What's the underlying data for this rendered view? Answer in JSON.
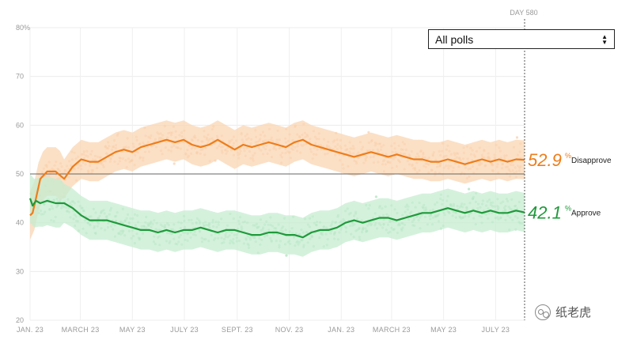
{
  "filter": {
    "selected": "All polls"
  },
  "watermark": {
    "text": "纸老虎"
  },
  "colors": {
    "disapprove": "#ef7d1a",
    "approve": "#1e9a3a",
    "disapprove_light": "#f9d5b3",
    "approve_light": "#c6ecd0"
  },
  "chart_data": {
    "type": "line",
    "title": "",
    "xlabel": "",
    "ylabel": "",
    "ylim": [
      20,
      80
    ],
    "yticks": [
      "80%",
      "70",
      "60",
      "50",
      "40",
      "30",
      "20"
    ],
    "xticks": [
      "JAN. 23",
      "MARCH 23",
      "MAY 23",
      "JULY 23",
      "SEPT. 23",
      "NOV. 23",
      "JAN. 23",
      "MARCH 23",
      "MAY 23",
      "JULY 23"
    ],
    "xtick_days": [
      0,
      59,
      120,
      181,
      243,
      304,
      365,
      424,
      485,
      546
    ],
    "day_marker": {
      "day": 580,
      "label": "DAY 580"
    },
    "reference_line": 50,
    "x_days": [
      0,
      3,
      7,
      12,
      20,
      30,
      40,
      50,
      60,
      70,
      80,
      90,
      100,
      110,
      120,
      130,
      140,
      150,
      160,
      170,
      180,
      190,
      200,
      210,
      220,
      230,
      240,
      250,
      260,
      270,
      280,
      290,
      300,
      310,
      320,
      330,
      340,
      350,
      360,
      370,
      380,
      390,
      400,
      410,
      420,
      430,
      440,
      450,
      460,
      470,
      480,
      490,
      500,
      510,
      520,
      530,
      540,
      550,
      560,
      570,
      580
    ],
    "series": [
      {
        "name": "Disapprove",
        "color": "#ef7d1a",
        "values": [
          41.5,
          42,
          45,
          49,
          50.5,
          50.5,
          49,
          51.5,
          53,
          52.5,
          52.5,
          53.5,
          54.5,
          55,
          54.5,
          55.5,
          56,
          56.5,
          57,
          56.5,
          57,
          56,
          55.5,
          56,
          57,
          56,
          55,
          56,
          55.5,
          56,
          56.5,
          56,
          55.5,
          56.5,
          57,
          56,
          55.5,
          55,
          54.5,
          54,
          53.5,
          54,
          54.5,
          54,
          53.5,
          54,
          53.5,
          53,
          53,
          52.5,
          52.5,
          53,
          52.5,
          52,
          52.5,
          53,
          52.5,
          53,
          52.5,
          53,
          52.9
        ],
        "end_label": "52.9",
        "end_unit": "%",
        "end_name": "Disapprove"
      },
      {
        "name": "Approve",
        "color": "#1e9a3a",
        "values": [
          45,
          43.5,
          44.5,
          44,
          44.5,
          44,
          44,
          43,
          41.5,
          40.5,
          40.5,
          40.5,
          40,
          39.5,
          39,
          38.5,
          38.5,
          38,
          38.5,
          38,
          38.5,
          38.5,
          39,
          38.5,
          38,
          38.5,
          38.5,
          38,
          37.5,
          37.5,
          38,
          38,
          37.5,
          37.5,
          37,
          38,
          38.5,
          38.5,
          39,
          40,
          40.5,
          40,
          40.5,
          41,
          41,
          40.5,
          41,
          41.5,
          42,
          42,
          42.5,
          43,
          42.5,
          42,
          42.5,
          42,
          42.5,
          42,
          42,
          42.5,
          42.1
        ],
        "end_label": "42.1",
        "end_unit": "%",
        "end_name": "Approve"
      }
    ]
  }
}
